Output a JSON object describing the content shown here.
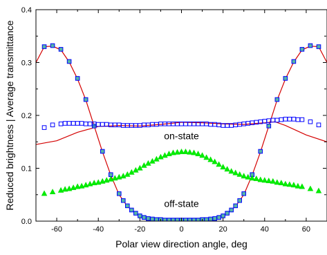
{
  "chart_data": {
    "type": "line",
    "xlabel": "Polar view direction angle, deg",
    "ylabel": "Reduced brightness | Average transmittance",
    "xlim": [
      -70,
      70
    ],
    "ylim": [
      0,
      0.4
    ],
    "xticks": [
      -60,
      -40,
      -20,
      0,
      20,
      40,
      60
    ],
    "yticks": [
      0.0,
      0.1,
      0.2,
      0.3,
      0.4
    ],
    "ytick_labels": [
      "0.0",
      "0.1",
      "0.2",
      "0.3",
      "0.4"
    ],
    "grid": false,
    "annotations": [
      {
        "text": "on-state",
        "x": 0,
        "y": 0.155
      },
      {
        "text": "off-state",
        "x": 0,
        "y": 0.027
      }
    ],
    "series": [
      {
        "kind": "scatter",
        "marker": "square",
        "stroke": "#0000ff",
        "fill": "#56b6a6",
        "x": [
          -66,
          -62,
          -58,
          -54,
          -50,
          -46,
          -42,
          -38,
          -34,
          -30,
          -28,
          -26,
          -24,
          -22,
          -20,
          -18,
          -16,
          -14,
          -12,
          -10,
          -8,
          -6,
          -4,
          -2,
          0,
          2,
          4,
          6,
          8,
          10,
          12,
          14,
          16,
          18,
          20,
          22,
          24,
          26,
          28,
          30,
          34,
          38,
          42,
          46,
          50,
          54,
          58,
          62,
          66
        ],
        "y": [
          0.33,
          0.332,
          0.325,
          0.302,
          0.27,
          0.23,
          0.18,
          0.132,
          0.088,
          0.052,
          0.039,
          0.029,
          0.021,
          0.015,
          0.01,
          0.007,
          0.005,
          0.004,
          0.003,
          0.003,
          0.002,
          0.002,
          0.002,
          0.002,
          0.002,
          0.002,
          0.002,
          0.002,
          0.002,
          0.003,
          0.003,
          0.004,
          0.005,
          0.007,
          0.01,
          0.015,
          0.021,
          0.029,
          0.039,
          0.052,
          0.088,
          0.132,
          0.18,
          0.23,
          0.27,
          0.302,
          0.325,
          0.332,
          0.33
        ]
      },
      {
        "kind": "line",
        "stroke": "#d40000",
        "x": [
          -70,
          -66,
          -62,
          -58,
          -54,
          -50,
          -46,
          -42,
          -38,
          -34,
          -30,
          -26,
          -22,
          -18,
          -14,
          -10,
          -6,
          -2,
          2,
          6,
          10,
          14,
          18,
          22,
          26,
          30,
          34,
          38,
          42,
          46,
          50,
          54,
          58,
          62,
          66,
          70
        ],
        "y": [
          0.3,
          0.33,
          0.331,
          0.324,
          0.301,
          0.269,
          0.229,
          0.18,
          0.131,
          0.087,
          0.05,
          0.028,
          0.014,
          0.006,
          0.003,
          0.002,
          0.002,
          0.002,
          0.002,
          0.002,
          0.002,
          0.003,
          0.006,
          0.014,
          0.028,
          0.05,
          0.087,
          0.131,
          0.18,
          0.229,
          0.269,
          0.301,
          0.324,
          0.331,
          0.33,
          0.3
        ]
      },
      {
        "kind": "line",
        "stroke": "#d40000",
        "x": [
          -70,
          -60,
          -50,
          -40,
          -30,
          -20,
          -10,
          0,
          10,
          20,
          30,
          40,
          45,
          50,
          60,
          70
        ],
        "y": [
          0.145,
          0.152,
          0.168,
          0.179,
          0.181,
          0.18,
          0.183,
          0.187,
          0.186,
          0.184,
          0.183,
          0.186,
          0.188,
          0.181,
          0.163,
          0.15
        ]
      },
      {
        "kind": "scatter",
        "marker": "square-open",
        "stroke": "#0000ff",
        "fill": "none",
        "x": [
          -66,
          -62,
          -58,
          -56,
          -54,
          -52,
          -50,
          -48,
          -46,
          -44,
          -42,
          -40,
          -38,
          -36,
          -34,
          -32,
          -30,
          -28,
          -26,
          -24,
          -22,
          -20,
          -18,
          -16,
          -14,
          -12,
          -10,
          -8,
          -6,
          -4,
          -2,
          0,
          2,
          4,
          6,
          8,
          10,
          12,
          14,
          16,
          18,
          20,
          22,
          24,
          26,
          28,
          30,
          32,
          34,
          36,
          38,
          40,
          42,
          44,
          46,
          48,
          50,
          52,
          54,
          56,
          58,
          62,
          66
        ],
        "y": [
          0.177,
          0.182,
          0.184,
          0.185,
          0.185,
          0.185,
          0.185,
          0.185,
          0.184,
          0.184,
          0.184,
          0.183,
          0.183,
          0.183,
          0.182,
          0.182,
          0.182,
          0.181,
          0.181,
          0.181,
          0.181,
          0.181,
          0.182,
          0.182,
          0.183,
          0.183,
          0.184,
          0.184,
          0.184,
          0.184,
          0.184,
          0.184,
          0.184,
          0.184,
          0.184,
          0.184,
          0.184,
          0.184,
          0.183,
          0.183,
          0.182,
          0.181,
          0.181,
          0.181,
          0.182,
          0.183,
          0.184,
          0.185,
          0.186,
          0.187,
          0.188,
          0.189,
          0.19,
          0.191,
          0.191,
          0.192,
          0.193,
          0.193,
          0.193,
          0.192,
          0.192,
          0.188,
          0.182
        ]
      },
      {
        "kind": "scatter",
        "marker": "triangle",
        "stroke": "#00dd00",
        "fill": "#00ee00",
        "x": [
          -66,
          -62,
          -58,
          -56,
          -54,
          -52,
          -50,
          -48,
          -46,
          -44,
          -42,
          -40,
          -38,
          -36,
          -34,
          -32,
          -30,
          -28,
          -26,
          -24,
          -22,
          -20,
          -18,
          -16,
          -14,
          -12,
          -10,
          -8,
          -6,
          -4,
          -2,
          0,
          2,
          4,
          6,
          8,
          10,
          12,
          14,
          16,
          18,
          20,
          22,
          24,
          26,
          28,
          30,
          32,
          34,
          36,
          38,
          40,
          42,
          44,
          46,
          48,
          50,
          52,
          54,
          56,
          58,
          62,
          66
        ],
        "y": [
          0.052,
          0.055,
          0.058,
          0.06,
          0.061,
          0.063,
          0.065,
          0.066,
          0.068,
          0.07,
          0.072,
          0.073,
          0.075,
          0.077,
          0.079,
          0.081,
          0.083,
          0.085,
          0.088,
          0.092,
          0.096,
          0.1,
          0.105,
          0.109,
          0.113,
          0.117,
          0.121,
          0.124,
          0.127,
          0.129,
          0.13,
          0.131,
          0.131,
          0.13,
          0.129,
          0.127,
          0.124,
          0.12,
          0.116,
          0.112,
          0.107,
          0.102,
          0.098,
          0.094,
          0.091,
          0.088,
          0.085,
          0.083,
          0.081,
          0.08,
          0.078,
          0.077,
          0.076,
          0.075,
          0.073,
          0.072,
          0.07,
          0.069,
          0.068,
          0.066,
          0.065,
          0.061,
          0.057
        ]
      }
    ]
  }
}
